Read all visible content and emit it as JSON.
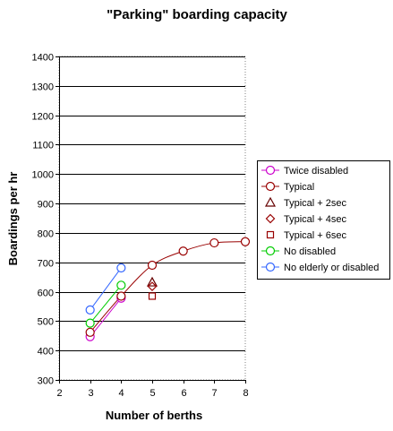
{
  "chart_data": {
    "type": "line",
    "title": "\"Parking\" boarding capacity",
    "xlabel": "Number of berths",
    "ylabel": "Boardings per hr",
    "xlim": [
      2,
      8
    ],
    "ylim": [
      300,
      1400
    ],
    "x_ticks": [
      2,
      3,
      4,
      5,
      6,
      7,
      8
    ],
    "y_ticks": [
      300,
      400,
      500,
      600,
      700,
      800,
      900,
      1000,
      1100,
      1200,
      1300,
      1400
    ],
    "grid": "horizontal",
    "legend_position": "right",
    "series": [
      {
        "name": "Twice disabled",
        "color": "#cc00cc",
        "marker": "circle",
        "line": true,
        "points": [
          [
            3,
            447
          ],
          [
            4,
            578
          ]
        ]
      },
      {
        "name": "Typical",
        "color": "#990000",
        "marker": "circle",
        "line": true,
        "points": [
          [
            3,
            462
          ],
          [
            4,
            585
          ],
          [
            5,
            690
          ],
          [
            6,
            738
          ],
          [
            7,
            766
          ],
          [
            8,
            770
          ]
        ]
      },
      {
        "name": "Typical + 2sec",
        "color": "#660000",
        "marker": "triangle",
        "line": false,
        "points": [
          [
            5,
            632
          ]
        ]
      },
      {
        "name": "Typical + 4sec",
        "color": "#990000",
        "marker": "diamond",
        "line": false,
        "points": [
          [
            5,
            618
          ]
        ]
      },
      {
        "name": "Typical + 6sec",
        "color": "#990000",
        "marker": "square",
        "line": false,
        "points": [
          [
            5,
            585
          ]
        ]
      },
      {
        "name": "No disabled",
        "color": "#00cc00",
        "marker": "circle",
        "line": true,
        "points": [
          [
            3,
            493
          ],
          [
            4,
            622
          ]
        ]
      },
      {
        "name": "No elderly or disabled",
        "color": "#3366ff",
        "marker": "circle",
        "line": true,
        "points": [
          [
            3,
            538
          ],
          [
            4,
            681
          ]
        ]
      }
    ]
  }
}
